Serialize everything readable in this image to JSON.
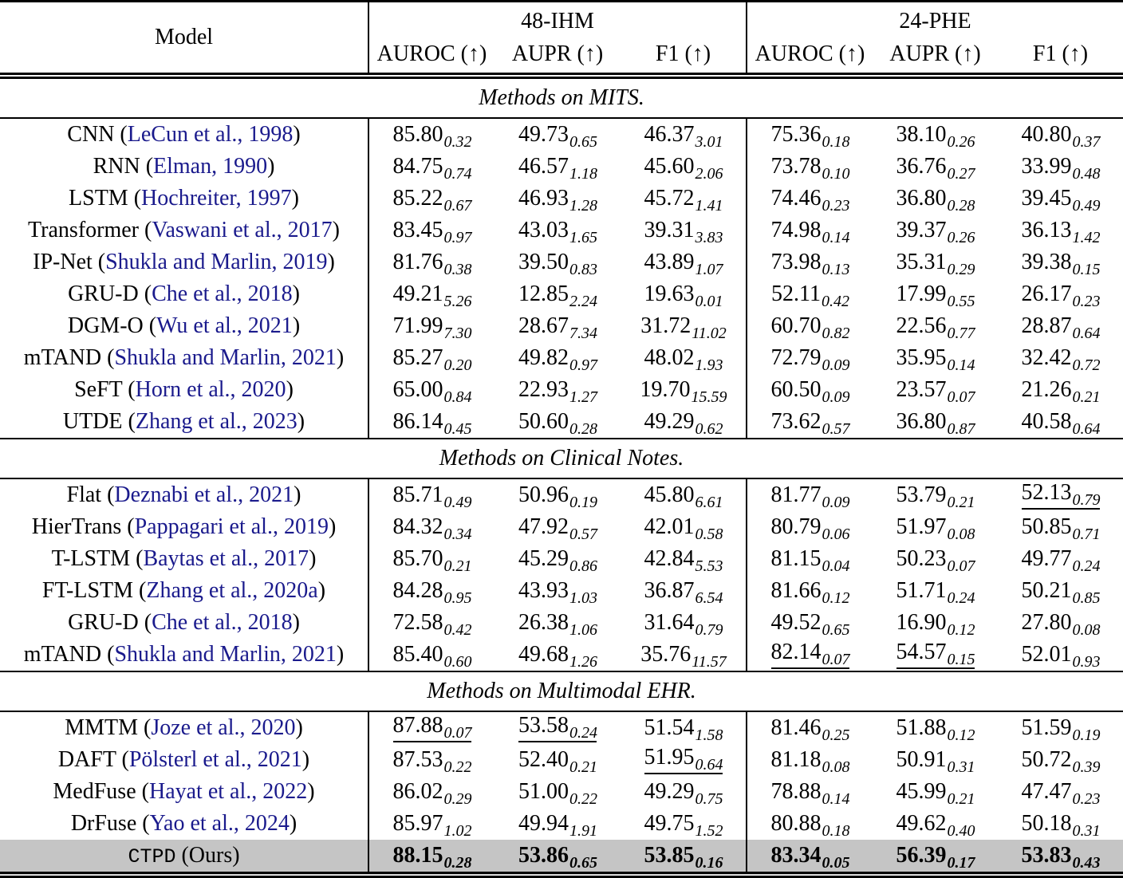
{
  "table": {
    "header": {
      "model_label": "Model",
      "groups": [
        {
          "label": "48-IHM",
          "metrics": [
            "AUROC (↑)",
            "AUPR (↑)",
            "F1 (↑)"
          ]
        },
        {
          "label": "24-PHE",
          "metrics": [
            "AUROC (↑)",
            "AUPR (↑)",
            "F1 (↑)"
          ]
        }
      ]
    },
    "colors": {
      "citation": "#1a1a8c",
      "highlight_row": "#c5c5c5",
      "rule": "#000000"
    },
    "sections": [
      {
        "title": "Methods on MITS.",
        "rows": [
          {
            "model": "CNN",
            "cite": "LeCun et al., 1998",
            "cells": [
              {
                "v": "85.80",
                "s": "0.32"
              },
              {
                "v": "49.73",
                "s": "0.65"
              },
              {
                "v": "46.37",
                "s": "3.01"
              },
              {
                "v": "75.36",
                "s": "0.18"
              },
              {
                "v": "38.10",
                "s": "0.26"
              },
              {
                "v": "40.80",
                "s": "0.37"
              }
            ]
          },
          {
            "model": "RNN",
            "cite": "Elman, 1990",
            "cells": [
              {
                "v": "84.75",
                "s": "0.74"
              },
              {
                "v": "46.57",
                "s": "1.18"
              },
              {
                "v": "45.60",
                "s": "2.06"
              },
              {
                "v": "73.78",
                "s": "0.10"
              },
              {
                "v": "36.76",
                "s": "0.27"
              },
              {
                "v": "33.99",
                "s": "0.48"
              }
            ]
          },
          {
            "model": "LSTM",
            "cite": "Hochreiter, 1997",
            "cells": [
              {
                "v": "85.22",
                "s": "0.67"
              },
              {
                "v": "46.93",
                "s": "1.28"
              },
              {
                "v": "45.72",
                "s": "1.41"
              },
              {
                "v": "74.46",
                "s": "0.23"
              },
              {
                "v": "36.80",
                "s": "0.28"
              },
              {
                "v": "39.45",
                "s": "0.49"
              }
            ]
          },
          {
            "model": "Transformer",
            "cite": "Vaswani et al., 2017",
            "cells": [
              {
                "v": "83.45",
                "s": "0.97"
              },
              {
                "v": "43.03",
                "s": "1.65"
              },
              {
                "v": "39.31",
                "s": "3.83"
              },
              {
                "v": "74.98",
                "s": "0.14"
              },
              {
                "v": "39.37",
                "s": "0.26"
              },
              {
                "v": "36.13",
                "s": "1.42"
              }
            ]
          },
          {
            "model": "IP-Net",
            "cite": "Shukla and Marlin, 2019",
            "cells": [
              {
                "v": "81.76",
                "s": "0.38"
              },
              {
                "v": "39.50",
                "s": "0.83"
              },
              {
                "v": "43.89",
                "s": "1.07"
              },
              {
                "v": "73.98",
                "s": "0.13"
              },
              {
                "v": "35.31",
                "s": "0.29"
              },
              {
                "v": "39.38",
                "s": "0.15"
              }
            ]
          },
          {
            "model": "GRU-D",
            "cite": "Che et al., 2018",
            "cells": [
              {
                "v": "49.21",
                "s": "5.26"
              },
              {
                "v": "12.85",
                "s": "2.24"
              },
              {
                "v": "19.63",
                "s": "0.01"
              },
              {
                "v": "52.11",
                "s": "0.42"
              },
              {
                "v": "17.99",
                "s": "0.55"
              },
              {
                "v": "26.17",
                "s": "0.23"
              }
            ]
          },
          {
            "model": "DGM-O",
            "cite": "Wu et al., 2021",
            "cells": [
              {
                "v": "71.99",
                "s": "7.30"
              },
              {
                "v": "28.67",
                "s": "7.34"
              },
              {
                "v": "31.72",
                "s": "11.02"
              },
              {
                "v": "60.70",
                "s": "0.82"
              },
              {
                "v": "22.56",
                "s": "0.77"
              },
              {
                "v": "28.87",
                "s": "0.64"
              }
            ]
          },
          {
            "model": "mTAND",
            "cite": "Shukla and Marlin, 2021",
            "cells": [
              {
                "v": "85.27",
                "s": "0.20"
              },
              {
                "v": "49.82",
                "s": "0.97"
              },
              {
                "v": "48.02",
                "s": "1.93"
              },
              {
                "v": "72.79",
                "s": "0.09"
              },
              {
                "v": "35.95",
                "s": "0.14"
              },
              {
                "v": "32.42",
                "s": "0.72"
              }
            ]
          },
          {
            "model": "SeFT",
            "cite": "Horn et al., 2020",
            "cells": [
              {
                "v": "65.00",
                "s": "0.84"
              },
              {
                "v": "22.93",
                "s": "1.27"
              },
              {
                "v": "19.70",
                "s": "15.59"
              },
              {
                "v": "60.50",
                "s": "0.09"
              },
              {
                "v": "23.57",
                "s": "0.07"
              },
              {
                "v": "21.26",
                "s": "0.21"
              }
            ]
          },
          {
            "model": "UTDE",
            "cite": "Zhang et al., 2023",
            "cells": [
              {
                "v": "86.14",
                "s": "0.45"
              },
              {
                "v": "50.60",
                "s": "0.28"
              },
              {
                "v": "49.29",
                "s": "0.62"
              },
              {
                "v": "73.62",
                "s": "0.57"
              },
              {
                "v": "36.80",
                "s": "0.87"
              },
              {
                "v": "40.58",
                "s": "0.64"
              }
            ]
          }
        ]
      },
      {
        "title": "Methods on Clinical Notes.",
        "rows": [
          {
            "model": "Flat",
            "cite": "Deznabi et al., 2021",
            "cells": [
              {
                "v": "85.71",
                "s": "0.49"
              },
              {
                "v": "50.96",
                "s": "0.19"
              },
              {
                "v": "45.80",
                "s": "6.61"
              },
              {
                "v": "81.77",
                "s": "0.09"
              },
              {
                "v": "53.79",
                "s": "0.21"
              },
              {
                "v": "52.13",
                "s": "0.79",
                "u": true
              }
            ]
          },
          {
            "model": "HierTrans",
            "cite": "Pappagari et al., 2019",
            "cells": [
              {
                "v": "84.32",
                "s": "0.34"
              },
              {
                "v": "47.92",
                "s": "0.57"
              },
              {
                "v": "42.01",
                "s": "0.58"
              },
              {
                "v": "80.79",
                "s": "0.06"
              },
              {
                "v": "51.97",
                "s": "0.08"
              },
              {
                "v": "50.85",
                "s": "0.71"
              }
            ]
          },
          {
            "model": "T-LSTM",
            "cite": "Baytas et al., 2017",
            "cells": [
              {
                "v": "85.70",
                "s": "0.21"
              },
              {
                "v": "45.29",
                "s": "0.86"
              },
              {
                "v": "42.84",
                "s": "5.53"
              },
              {
                "v": "81.15",
                "s": "0.04"
              },
              {
                "v": "50.23",
                "s": "0.07"
              },
              {
                "v": "49.77",
                "s": "0.24"
              }
            ]
          },
          {
            "model": "FT-LSTM",
            "cite": "Zhang et al., 2020a",
            "cells": [
              {
                "v": "84.28",
                "s": "0.95"
              },
              {
                "v": "43.93",
                "s": "1.03"
              },
              {
                "v": "36.87",
                "s": "6.54"
              },
              {
                "v": "81.66",
                "s": "0.12"
              },
              {
                "v": "51.71",
                "s": "0.24"
              },
              {
                "v": "50.21",
                "s": "0.85"
              }
            ]
          },
          {
            "model": "GRU-D",
            "cite": "Che et al., 2018",
            "cells": [
              {
                "v": "72.58",
                "s": "0.42"
              },
              {
                "v": "26.38",
                "s": "1.06"
              },
              {
                "v": "31.64",
                "s": "0.79"
              },
              {
                "v": "49.52",
                "s": "0.65"
              },
              {
                "v": "16.90",
                "s": "0.12"
              },
              {
                "v": "27.80",
                "s": "0.08"
              }
            ]
          },
          {
            "model": "mTAND",
            "cite": "Shukla and Marlin, 2021",
            "cells": [
              {
                "v": "85.40",
                "s": "0.60"
              },
              {
                "v": "49.68",
                "s": "1.26"
              },
              {
                "v": "35.76",
                "s": "11.57"
              },
              {
                "v": "82.14",
                "s": "0.07",
                "u": true
              },
              {
                "v": "54.57",
                "s": "0.15",
                "u": true
              },
              {
                "v": "52.01",
                "s": "0.93"
              }
            ]
          }
        ]
      },
      {
        "title": "Methods on Multimodal EHR.",
        "rows": [
          {
            "model": "MMTM",
            "cite": "Joze et al., 2020",
            "cells": [
              {
                "v": "87.88",
                "s": "0.07",
                "u": true
              },
              {
                "v": "53.58",
                "s": "0.24",
                "u": true
              },
              {
                "v": "51.54",
                "s": "1.58"
              },
              {
                "v": "81.46",
                "s": "0.25"
              },
              {
                "v": "51.88",
                "s": "0.12"
              },
              {
                "v": "51.59",
                "s": "0.19"
              }
            ]
          },
          {
            "model": "DAFT",
            "cite": "Pölsterl et al., 2021",
            "cells": [
              {
                "v": "87.53",
                "s": "0.22"
              },
              {
                "v": "52.40",
                "s": "0.21"
              },
              {
                "v": "51.95",
                "s": "0.64",
                "u": true
              },
              {
                "v": "81.18",
                "s": "0.08"
              },
              {
                "v": "50.91",
                "s": "0.31"
              },
              {
                "v": "50.72",
                "s": "0.39"
              }
            ]
          },
          {
            "model": "MedFuse",
            "cite": "Hayat et al., 2022",
            "cells": [
              {
                "v": "86.02",
                "s": "0.29"
              },
              {
                "v": "51.00",
                "s": "0.22"
              },
              {
                "v": "49.29",
                "s": "0.75"
              },
              {
                "v": "78.88",
                "s": "0.14"
              },
              {
                "v": "45.99",
                "s": "0.21"
              },
              {
                "v": "47.47",
                "s": "0.23"
              }
            ]
          },
          {
            "model": "DrFuse",
            "cite": "Yao et al., 2024",
            "cells": [
              {
                "v": "85.97",
                "s": "1.02"
              },
              {
                "v": "49.94",
                "s": "1.91"
              },
              {
                "v": "49.75",
                "s": "1.52"
              },
              {
                "v": "80.88",
                "s": "0.18"
              },
              {
                "v": "49.62",
                "s": "0.40"
              },
              {
                "v": "50.18",
                "s": "0.31"
              }
            ]
          },
          {
            "model": "CTPD",
            "cite": "Ours",
            "ours": true,
            "highlight": true,
            "cells": [
              {
                "v": "88.15",
                "s": "0.28",
                "b": true
              },
              {
                "v": "53.86",
                "s": "0.65",
                "b": true
              },
              {
                "v": "53.85",
                "s": "0.16",
                "b": true
              },
              {
                "v": "83.34",
                "s": "0.05",
                "b": true
              },
              {
                "v": "56.39",
                "s": "0.17",
                "b": true
              },
              {
                "v": "53.83",
                "s": "0.43",
                "b": true
              }
            ]
          }
        ]
      }
    ]
  }
}
